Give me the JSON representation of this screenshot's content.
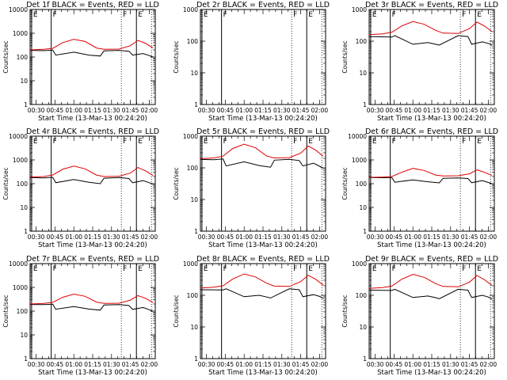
{
  "figure": {
    "x_range_hours": [
      0.42,
      2.08
    ],
    "x_ticks": [
      {
        "t": 0.5,
        "label": "00:30"
      },
      {
        "t": 0.75,
        "label": "00:45"
      },
      {
        "t": 1.0,
        "label": "01:00"
      },
      {
        "t": 1.25,
        "label": "01:15"
      },
      {
        "t": 1.5,
        "label": "01:30"
      },
      {
        "t": 1.75,
        "label": "01:45"
      },
      {
        "t": 2.0,
        "label": "02:00"
      }
    ],
    "y_ticks": [
      {
        "v": 1,
        "label": "1"
      },
      {
        "v": 10,
        "label": "10"
      },
      {
        "v": 100,
        "label": "100"
      },
      {
        "v": 1000,
        "label": "1000"
      },
      {
        "v": 10000,
        "label": "10000"
      }
    ],
    "event_markers": [
      {
        "t": 0.44,
        "label": "E",
        "style": "solid"
      },
      {
        "t": 0.7,
        "label": "F",
        "style": "solid"
      },
      {
        "t": 1.63,
        "label": "F",
        "style": "dotted"
      },
      {
        "t": 1.83,
        "label": "E",
        "style": "solid"
      },
      {
        "t": 2.03,
        "label": "",
        "style": "dotted"
      }
    ],
    "colors": {
      "events": "#000000",
      "lld": "#e00000"
    }
  },
  "chart_data": [
    {
      "type": "line",
      "title": "Det 1f BLACK = Events, RED = LLD",
      "xlabel": "Start Time (13-Mar-13 00:24:20)",
      "ylabel": "Counts/sec",
      "ylim": [
        1,
        10000
      ],
      "yscale": "log",
      "x_unit": "hours after 00:00 UT",
      "series": [
        {
          "name": "Events",
          "color": "#000000",
          "x": [
            0.42,
            0.6,
            0.72,
            0.76,
            1.0,
            1.2,
            1.35,
            1.4,
            1.6,
            1.73,
            1.78,
            1.92,
            2.0,
            2.05
          ],
          "values": [
            190,
            185,
            195,
            120,
            160,
            120,
            110,
            180,
            190,
            175,
            120,
            140,
            115,
            100
          ]
        },
        {
          "name": "LLD",
          "color": "#e00000",
          "x": [
            0.42,
            0.6,
            0.72,
            0.85,
            1.0,
            1.15,
            1.3,
            1.4,
            1.6,
            1.75,
            1.85,
            1.95,
            2.05
          ],
          "values": [
            200,
            210,
            230,
            400,
            560,
            450,
            240,
            210,
            215,
            300,
            500,
            380,
            240
          ]
        }
      ]
    },
    {
      "type": "line",
      "title": "Det 2r BLACK = Events, RED = LLD",
      "xlabel": "Start Time (13-Mar-13 00:24:20)",
      "ylabel": "Counts/sec",
      "ylim": [
        1,
        1000
      ],
      "yscale": "log",
      "x_unit": "hours after 00:00 UT",
      "series": []
    },
    {
      "type": "line",
      "title": "Det 3r BLACK = Events, RED = LLD",
      "xlabel": "Start Time (13-Mar-13 00:24:20)",
      "ylabel": "Counts/sec",
      "ylim": [
        1,
        1000
      ],
      "yscale": "log",
      "x_unit": "hours after 00:00 UT",
      "series": [
        {
          "name": "Events",
          "color": "#000000",
          "x": [
            0.42,
            0.72,
            0.76,
            1.0,
            1.2,
            1.3,
            1.35,
            1.6,
            1.73,
            1.78,
            1.92,
            2.0,
            2.05
          ],
          "values": [
            140,
            135,
            150,
            80,
            90,
            80,
            75,
            150,
            140,
            80,
            95,
            85,
            75
          ]
        },
        {
          "name": "LLD",
          "color": "#e00000",
          "x": [
            0.42,
            0.6,
            0.72,
            0.85,
            1.0,
            1.15,
            1.3,
            1.4,
            1.6,
            1.75,
            1.85,
            1.95,
            2.05
          ],
          "values": [
            160,
            170,
            190,
            300,
            420,
            340,
            220,
            180,
            175,
            250,
            400,
            300,
            200
          ]
        }
      ]
    },
    {
      "type": "line",
      "title": "Det 4r BLACK = Events, RED = LLD",
      "xlabel": "Start Time (13-Mar-13 00:24:20)",
      "ylabel": "Counts/sec",
      "ylim": [
        1,
        10000
      ],
      "yscale": "log",
      "x_unit": "hours after 00:00 UT",
      "series": [
        {
          "name": "Events",
          "color": "#000000",
          "x": [
            0.42,
            0.6,
            0.72,
            0.76,
            1.0,
            1.2,
            1.35,
            1.4,
            1.6,
            1.73,
            1.78,
            1.92,
            2.0,
            2.05
          ],
          "values": [
            180,
            175,
            185,
            110,
            150,
            115,
            100,
            170,
            180,
            165,
            110,
            135,
            110,
            95
          ]
        },
        {
          "name": "LLD",
          "color": "#e00000",
          "x": [
            0.42,
            0.6,
            0.72,
            0.85,
            1.0,
            1.15,
            1.3,
            1.4,
            1.6,
            1.75,
            1.85,
            1.95,
            2.05
          ],
          "values": [
            190,
            200,
            230,
            400,
            550,
            420,
            230,
            200,
            205,
            280,
            480,
            350,
            220
          ]
        }
      ]
    },
    {
      "type": "line",
      "title": "Det 5r BLACK = Events, RED = LLD",
      "xlabel": "Start Time (13-Mar-13 00:24:20)",
      "ylabel": "Counts/sec",
      "ylim": [
        1,
        1000
      ],
      "yscale": "log",
      "x_unit": "hours after 00:00 UT",
      "series": [
        {
          "name": "Events",
          "color": "#000000",
          "x": [
            0.42,
            0.6,
            0.72,
            0.76,
            1.0,
            1.2,
            1.35,
            1.4,
            1.6,
            1.73,
            1.78,
            1.92,
            2.0,
            2.05
          ],
          "values": [
            185,
            180,
            190,
            115,
            155,
            118,
            105,
            175,
            185,
            170,
            115,
            140,
            112,
            98
          ]
        },
        {
          "name": "LLD",
          "color": "#e00000",
          "x": [
            0.42,
            0.6,
            0.72,
            0.85,
            1.0,
            1.15,
            1.3,
            1.4,
            1.6,
            1.75,
            1.85,
            1.95,
            2.05
          ],
          "values": [
            195,
            205,
            235,
            410,
            560,
            430,
            235,
            205,
            210,
            290,
            490,
            360,
            230
          ]
        }
      ]
    },
    {
      "type": "line",
      "title": "Det 6r BLACK = Events, RED = LLD",
      "xlabel": "Start Time (13-Mar-13 00:24:20)",
      "ylabel": "Counts/sec",
      "ylim": [
        1,
        10000
      ],
      "yscale": "log",
      "x_unit": "hours after 00:00 UT",
      "series": [
        {
          "name": "Events",
          "color": "#000000",
          "x": [
            0.42,
            0.6,
            0.72,
            0.76,
            1.0,
            1.2,
            1.35,
            1.4,
            1.6,
            1.73,
            1.78,
            1.92,
            2.0,
            2.05
          ],
          "values": [
            180,
            178,
            182,
            115,
            145,
            120,
            108,
            168,
            175,
            165,
            110,
            135,
            112,
            100
          ]
        },
        {
          "name": "LLD",
          "color": "#e00000",
          "x": [
            0.42,
            0.6,
            0.72,
            0.85,
            1.0,
            1.15,
            1.3,
            1.4,
            1.6,
            1.75,
            1.85,
            1.95,
            2.05
          ],
          "values": [
            185,
            190,
            200,
            300,
            440,
            360,
            230,
            210,
            215,
            260,
            380,
            300,
            220
          ]
        }
      ]
    },
    {
      "type": "line",
      "title": "Det 7r BLACK = Events, RED = LLD",
      "xlabel": "Start Time (13-Mar-13 00:24:20)",
      "ylabel": "Counts/sec",
      "ylim": [
        1,
        10000
      ],
      "yscale": "log",
      "x_unit": "hours after 00:00 UT",
      "series": [
        {
          "name": "Events",
          "color": "#000000",
          "x": [
            0.42,
            0.6,
            0.72,
            0.76,
            1.0,
            1.2,
            1.35,
            1.4,
            1.6,
            1.73,
            1.78,
            1.92,
            2.0,
            2.05
          ],
          "values": [
            190,
            188,
            195,
            120,
            155,
            122,
            110,
            180,
            188,
            172,
            118,
            142,
            114,
            100
          ]
        },
        {
          "name": "LLD",
          "color": "#e00000",
          "x": [
            0.42,
            0.6,
            0.72,
            0.85,
            1.0,
            1.15,
            1.3,
            1.4,
            1.6,
            1.75,
            1.85,
            1.95,
            2.05
          ],
          "values": [
            200,
            210,
            235,
            380,
            520,
            420,
            240,
            210,
            215,
            290,
            450,
            350,
            230
          ]
        }
      ]
    },
    {
      "type": "line",
      "title": "Det 8r BLACK = Events, RED = LLD",
      "xlabel": "Start Time (13-Mar-13 00:24:20)",
      "ylabel": "Counts/sec",
      "ylim": [
        1,
        1000
      ],
      "yscale": "log",
      "x_unit": "hours after 00:00 UT",
      "series": [
        {
          "name": "Events",
          "color": "#000000",
          "x": [
            0.42,
            0.72,
            0.76,
            1.0,
            1.2,
            1.3,
            1.35,
            1.6,
            1.73,
            1.78,
            1.92,
            2.0,
            2.05
          ],
          "values": [
            150,
            148,
            160,
            90,
            100,
            88,
            82,
            160,
            150,
            90,
            105,
            92,
            80
          ]
        },
        {
          "name": "LLD",
          "color": "#e00000",
          "x": [
            0.42,
            0.6,
            0.72,
            0.85,
            1.0,
            1.15,
            1.3,
            1.4,
            1.6,
            1.75,
            1.85,
            1.95,
            2.05
          ],
          "values": [
            170,
            180,
            200,
            330,
            470,
            380,
            240,
            195,
            190,
            270,
            430,
            320,
            210
          ]
        }
      ]
    },
    {
      "type": "line",
      "title": "Det 9r BLACK = Events, RED = LLD",
      "xlabel": "Start Time (13-Mar-13 00:24:20)",
      "ylabel": "Counts/sec",
      "ylim": [
        1,
        1000
      ],
      "yscale": "log",
      "x_unit": "hours after 00:00 UT",
      "series": [
        {
          "name": "Events",
          "color": "#000000",
          "x": [
            0.42,
            0.72,
            0.76,
            1.0,
            1.2,
            1.3,
            1.35,
            1.6,
            1.73,
            1.78,
            1.92,
            2.0,
            2.05
          ],
          "values": [
            145,
            142,
            155,
            85,
            95,
            84,
            78,
            155,
            145,
            85,
            100,
            88,
            76
          ]
        },
        {
          "name": "LLD",
          "color": "#e00000",
          "x": [
            0.42,
            0.6,
            0.72,
            0.85,
            1.0,
            1.15,
            1.3,
            1.4,
            1.6,
            1.75,
            1.85,
            1.95,
            2.05
          ],
          "values": [
            165,
            175,
            195,
            320,
            460,
            370,
            235,
            190,
            185,
            260,
            420,
            310,
            205
          ]
        }
      ]
    }
  ]
}
